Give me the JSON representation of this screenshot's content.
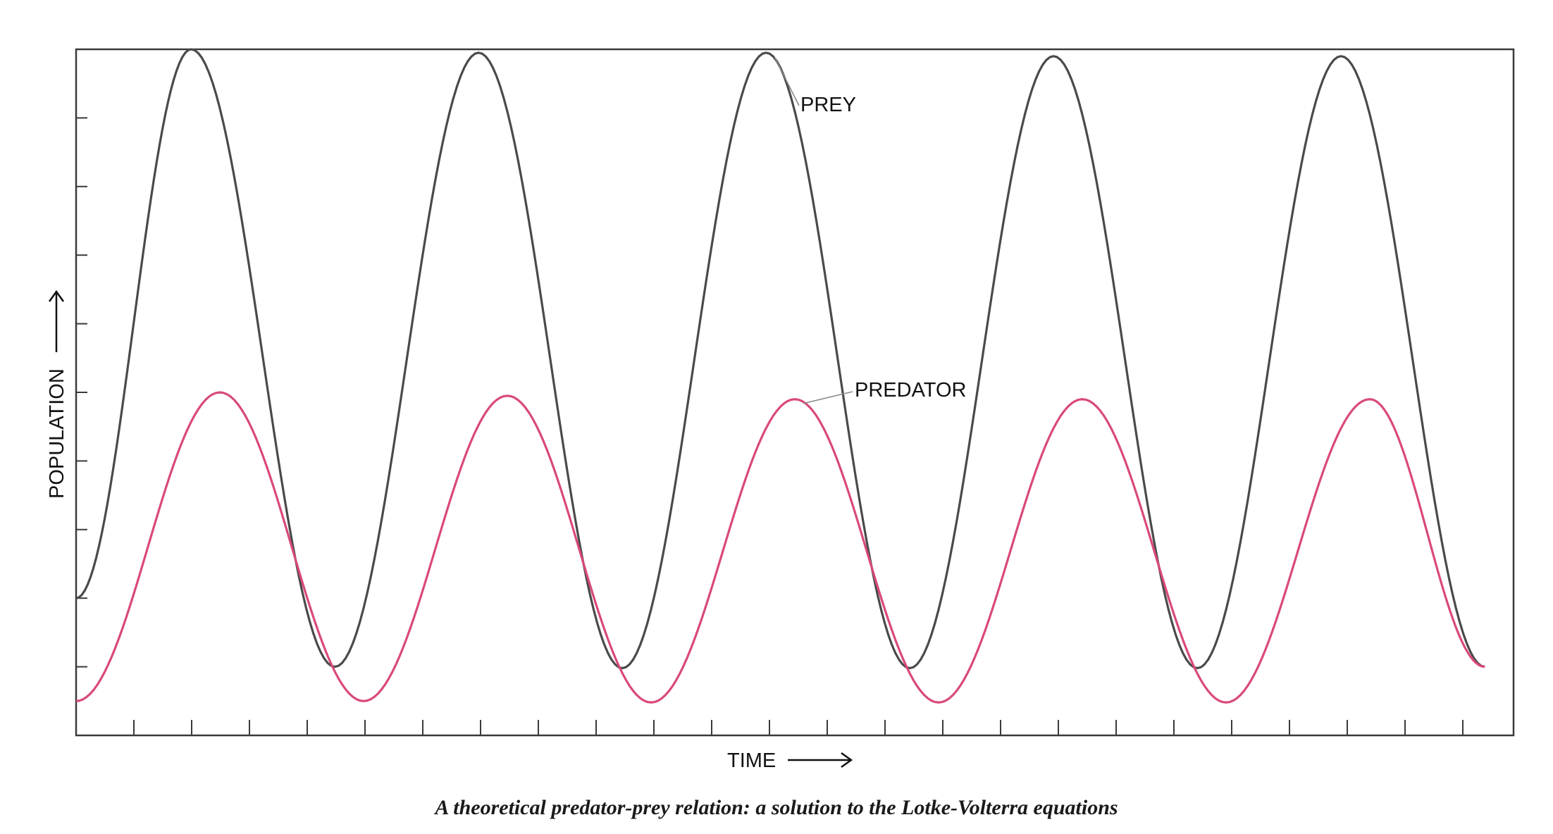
{
  "caption": "A theoretical predator-prey relation: a solution to the Lotke-Volterra equations",
  "chart_data": {
    "type": "line",
    "title": "",
    "xlabel": "TIME",
    "ylabel": "POPULATION",
    "xlim": [
      0,
      25
    ],
    "ylim": [
      0,
      10
    ],
    "grid": false,
    "x_tick_count": 25,
    "y_tick_values": [
      1,
      2,
      3,
      4,
      5,
      6,
      7,
      8,
      9,
      10
    ],
    "series": [
      {
        "name": "PREY",
        "color": "#4a4a4a",
        "x": [
          0,
          2,
          4.5,
          7,
          9.5,
          12,
          14.5,
          17,
          19.5,
          22,
          24.5
        ],
        "values": [
          2.0,
          10.0,
          1.0,
          9.95,
          0.98,
          9.95,
          0.98,
          9.9,
          0.98,
          9.9,
          1.0
        ]
      },
      {
        "name": "PREDATOR",
        "color": "#d9497a",
        "x": [
          0,
          2.5,
          5,
          7.5,
          10,
          12.5,
          15,
          17.5,
          20,
          22.5,
          24.5
        ],
        "values": [
          0.5,
          5.0,
          0.5,
          4.95,
          0.48,
          4.9,
          0.48,
          4.9,
          0.48,
          4.9,
          1.0
        ]
      }
    ]
  }
}
